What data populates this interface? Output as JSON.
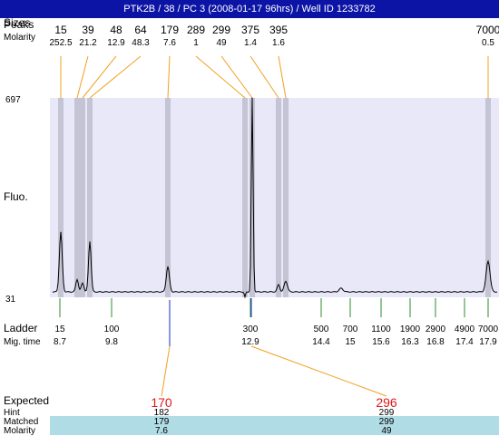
{
  "title": "PTK2B / 38 / PC 3 (2008-01-17 96hrs) / Well ID 1233782",
  "row_labels": {
    "sizes": "Sizes",
    "peaks": "Peaks",
    "molarity": "Molarity",
    "fluo": "Fluo.",
    "ladder": "Ladder",
    "mig_time": "Mig. time",
    "expected": "Expected",
    "hint": "Hint",
    "matched": "Matched",
    "molarity2": "Molarity"
  },
  "colors": {
    "title_bg": "#0c14a6",
    "plot_bg": "#e8e8f8",
    "band": "#c4c4d4",
    "connector": "#f0a020",
    "ladder_tick": "#2e8b2e",
    "expected_red": "#e01818",
    "marker_blue": "#1a2acc",
    "highlight_row": "#b0dce6"
  },
  "chart_data": {
    "type": "line",
    "y_ticks": [
      "697",
      "31"
    ],
    "ylim": [
      31,
      697
    ],
    "peaks": [
      {
        "size": "15",
        "molarity": "252.5"
      },
      {
        "size": "39",
        "molarity": "21.2"
      },
      {
        "size": "48",
        "molarity": "12.9"
      },
      {
        "size": "64",
        "molarity": "48.3"
      },
      {
        "size": "179",
        "molarity": "7.6"
      },
      {
        "size": "289",
        "molarity": "1"
      },
      {
        "size": "299",
        "molarity": "49"
      },
      {
        "size": "375",
        "molarity": "1.4"
      },
      {
        "size": "395",
        "molarity": "1.6"
      },
      {
        "size": "7000",
        "molarity": "0.5"
      }
    ],
    "ladder": [
      {
        "size": "15",
        "time": "8.7"
      },
      {
        "size": "100",
        "time": "9.8"
      },
      {
        "size": "300",
        "time": "12.9"
      },
      {
        "size": "500",
        "time": "14.4"
      },
      {
        "size": "700",
        "time": "15"
      },
      {
        "size": "1100",
        "time": "15.6"
      },
      {
        "size": "1900",
        "time": "16.3"
      },
      {
        "size": "2900",
        "time": "16.8"
      },
      {
        "size": "4900",
        "time": "17.4"
      },
      {
        "size": "7000",
        "time": "17.9"
      }
    ],
    "expected": [
      {
        "expected": "170",
        "hint": "182",
        "matched": "179",
        "molarity": "7.6"
      },
      {
        "expected": "296",
        "hint": "299",
        "matched": "299",
        "molarity": "49"
      }
    ]
  }
}
